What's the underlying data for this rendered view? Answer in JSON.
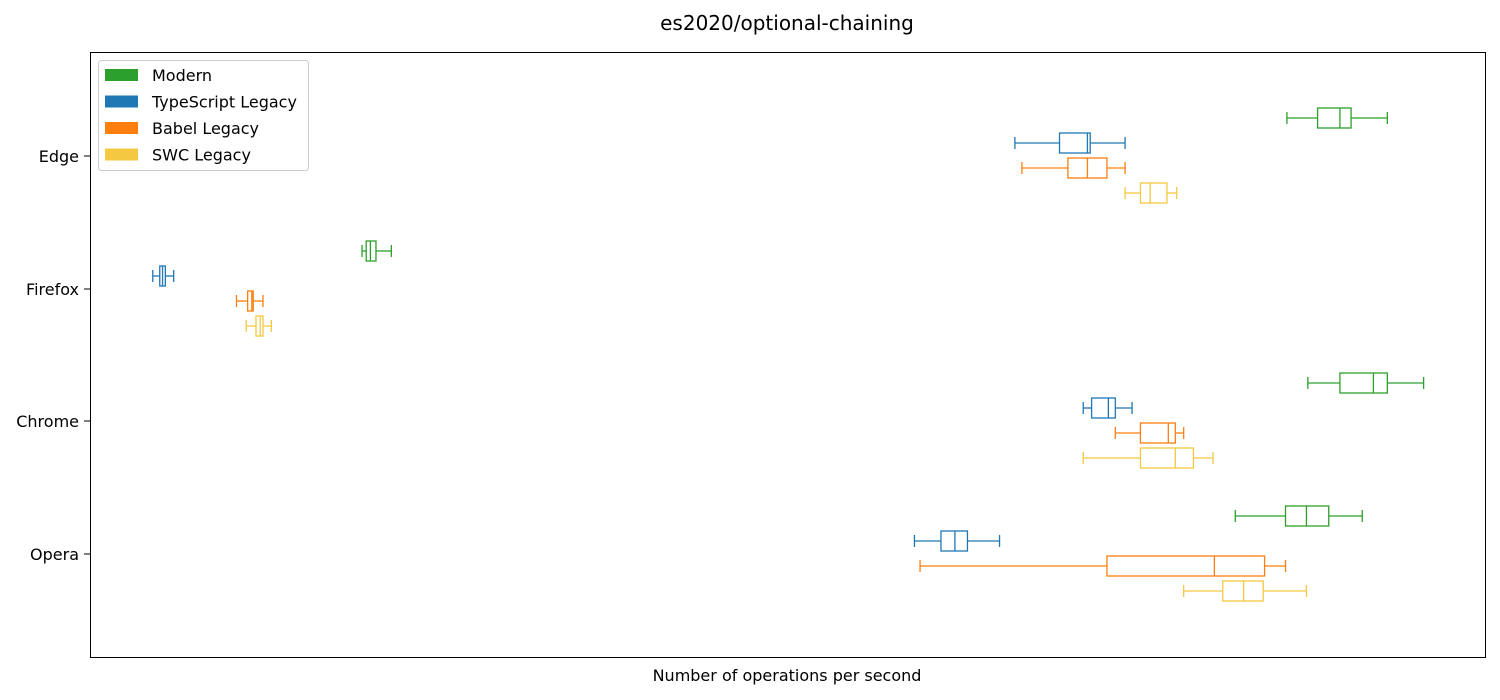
{
  "chart_data": {
    "type": "boxplot",
    "orientation": "horizontal",
    "title": "es2020/optional-chaining",
    "xlabel": "Number of operations per second",
    "ylabel": "",
    "x_ticks_shown": false,
    "xlim": [
      0,
      1000
    ],
    "categories": [
      "Edge",
      "Firefox",
      "Chrome",
      "Opera"
    ],
    "legend": {
      "placement": "top-left",
      "entries": [
        "Modern",
        "TypeScript Legacy",
        "Babel Legacy",
        "SWC Legacy"
      ]
    },
    "series": [
      {
        "name": "Modern",
        "color": "#2ca02c",
        "boxes": [
          {
            "category": "Edge",
            "whisker_low": 858,
            "q1": 880,
            "median": 896,
            "q3": 904,
            "whisker_high": 930
          },
          {
            "category": "Firefox",
            "whisker_low": 195,
            "q1": 198,
            "median": 201,
            "q3": 205,
            "whisker_high": 216
          },
          {
            "category": "Chrome",
            "whisker_low": 873,
            "q1": 896,
            "median": 920,
            "q3": 930,
            "whisker_high": 956
          },
          {
            "category": "Opera",
            "whisker_low": 821,
            "q1": 857,
            "median": 872,
            "q3": 888,
            "whisker_high": 912
          }
        ]
      },
      {
        "name": "TypeScript Legacy",
        "color": "#1f77b4",
        "boxes": [
          {
            "category": "Edge",
            "whisker_low": 663,
            "q1": 695,
            "median": 715,
            "q3": 717,
            "whisker_high": 742
          },
          {
            "category": "Firefox",
            "whisker_low": 45,
            "q1": 50,
            "median": 52,
            "q3": 54,
            "whisker_high": 60
          },
          {
            "category": "Chrome",
            "whisker_low": 712,
            "q1": 718,
            "median": 730,
            "q3": 735,
            "whisker_high": 747
          },
          {
            "category": "Opera",
            "whisker_low": 591,
            "q1": 610,
            "median": 620,
            "q3": 629,
            "whisker_high": 652
          }
        ]
      },
      {
        "name": "Babel Legacy",
        "color": "#ff7f0e",
        "boxes": [
          {
            "category": "Edge",
            "whisker_low": 668,
            "q1": 701,
            "median": 715,
            "q3": 729,
            "whisker_high": 742
          },
          {
            "category": "Firefox",
            "whisker_low": 105,
            "q1": 113,
            "median": 116,
            "q3": 117,
            "whisker_high": 124
          },
          {
            "category": "Chrome",
            "whisker_low": 735,
            "q1": 753,
            "median": 773,
            "q3": 778,
            "whisker_high": 784
          },
          {
            "category": "Opera",
            "whisker_low": 595,
            "q1": 729,
            "median": 806,
            "q3": 842,
            "whisker_high": 857
          }
        ]
      },
      {
        "name": "SWC Legacy",
        "color": "#f5c842",
        "boxes": [
          {
            "category": "Edge",
            "whisker_low": 742,
            "q1": 753,
            "median": 760,
            "q3": 772,
            "whisker_high": 779
          },
          {
            "category": "Firefox",
            "whisker_low": 112,
            "q1": 119,
            "median": 122,
            "q3": 124,
            "whisker_high": 130
          },
          {
            "category": "Chrome",
            "whisker_low": 712,
            "q1": 753,
            "median": 778,
            "q3": 791,
            "whisker_high": 805
          },
          {
            "category": "Opera",
            "whisker_low": 784,
            "q1": 812,
            "median": 827,
            "q3": 841,
            "whisker_high": 872
          }
        ]
      }
    ]
  }
}
